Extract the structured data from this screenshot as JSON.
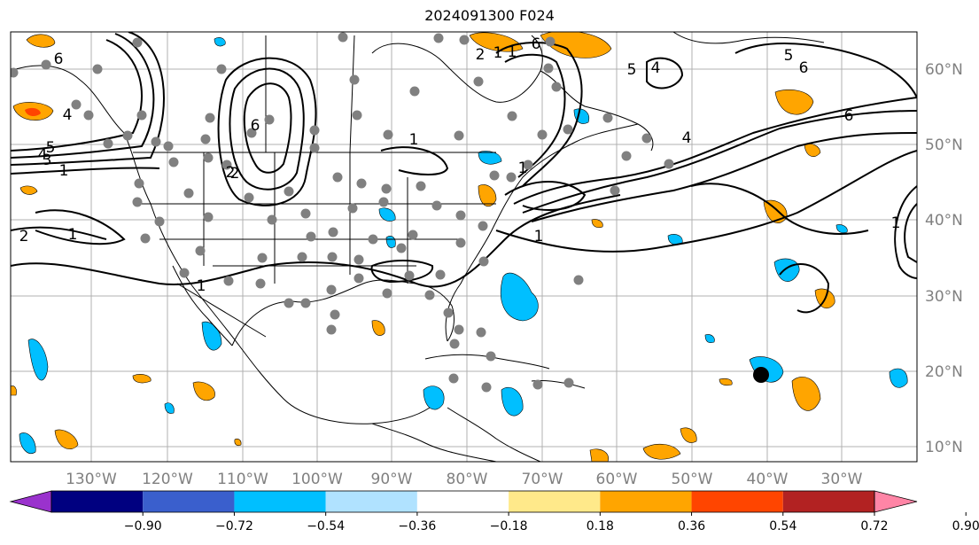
{
  "title": "2024091300 F024",
  "lon_labels": [
    "130°W",
    "120°W",
    "110°W",
    "100°W",
    "90°W",
    "80°W",
    "70°W",
    "60°W",
    "50°W",
    "40°W",
    "30°W"
  ],
  "lat_labels": [
    "60°N",
    "50°N",
    "40°N",
    "30°N",
    "20°N",
    "10°N"
  ],
  "colorbar": {
    "colors": [
      "#9a32cd",
      "#000080",
      "#3a5fcd",
      "#00bfff",
      "#b0e2ff",
      "#ffffff",
      "#ffe98a",
      "#ffa500",
      "#ff4500",
      "#b22222",
      "#ff85a6"
    ],
    "under_color": "#9a32cd",
    "over_color": "#ff85a6",
    "tick_labels": [
      "−0.90",
      "−0.72",
      "−0.54",
      "−0.36",
      "−0.18",
      "0.18",
      "0.36",
      "0.54",
      "0.72",
      "0.90"
    ]
  },
  "contour_labels": [
    "6",
    "5",
    "4",
    "3",
    "1",
    "2",
    "6",
    "4",
    "2",
    "1",
    "6",
    "5",
    "6",
    "1",
    "2",
    "1",
    "5",
    "4",
    "6",
    "4",
    "1",
    "2",
    "1",
    "1",
    "1",
    "1"
  ],
  "colors": {
    "land_line": "#000000",
    "grid": "#b0b0b0",
    "station": "#808080",
    "contour": "#000000"
  }
}
